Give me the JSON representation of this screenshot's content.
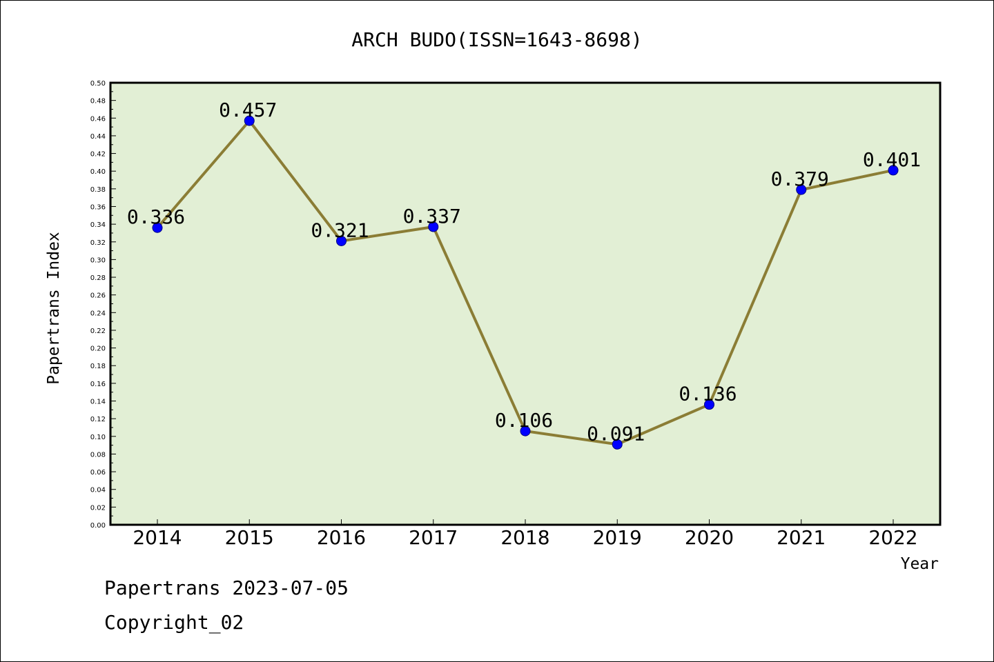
{
  "chart_data": {
    "type": "line",
    "title": "ARCH BUDO(ISSN=1643-8698)",
    "xlabel": "Year",
    "ylabel": "Papertrans Index",
    "categories": [
      "2014",
      "2015",
      "2016",
      "2017",
      "2018",
      "2019",
      "2020",
      "2021",
      "2022"
    ],
    "series": [
      {
        "values": [
          0.336,
          0.457,
          0.321,
          0.337,
          0.106,
          0.091,
          0.136,
          0.379,
          0.401
        ]
      }
    ],
    "data_labels": [
      "0.336",
      "0.457",
      "0.321",
      "0.337",
      "0.106",
      "0.091",
      "0.136",
      "0.379",
      "0.401"
    ],
    "ylim": [
      0,
      0.5
    ],
    "y_ticks": [
      "0.00",
      "0.02",
      "0.04",
      "0.06",
      "0.08",
      "0.10",
      "0.12",
      "0.14",
      "0.16",
      "0.18",
      "0.20",
      "0.22",
      "0.24",
      "0.26",
      "0.28",
      "0.30",
      "0.32",
      "0.34",
      "0.36",
      "0.38",
      "0.40",
      "0.42",
      "0.44",
      "0.46",
      "0.48",
      "0.50"
    ],
    "grid": false,
    "colors": {
      "plot_background": "#e2efd5",
      "line": "#8b7d35",
      "marker": "#0000ff",
      "marker_edge": "#000080"
    }
  },
  "footer": {
    "line1": "Papertrans 2023-07-05",
    "line2": "Copyright_02"
  }
}
